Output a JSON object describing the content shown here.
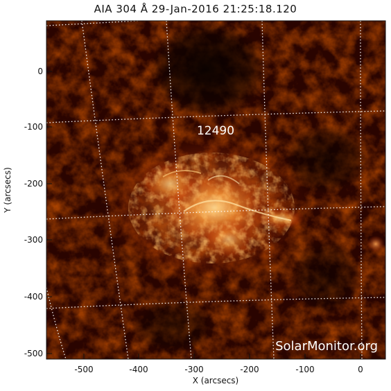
{
  "title": "AIA 304 Å 29-Jan-2016 21:25:18.120",
  "region_label": "12490",
  "watermark": "SolarMonitor.org",
  "x_axis": {
    "label": "X (arcsecs)",
    "ticks": [
      "-500",
      "-400",
      "-300",
      "-200",
      "-100",
      "0"
    ]
  },
  "y_axis": {
    "label": "Y (arcsecs)",
    "ticks": [
      "0",
      "-100",
      "-200",
      "-300",
      "-400",
      "-500"
    ]
  },
  "colors": {
    "background": "#ffffff",
    "image_dark": "#1a0200",
    "image_red": "#8b1a00",
    "image_orange": "#e06010",
    "image_bright": "#ffe2a0",
    "grid": "#ffffff"
  }
}
